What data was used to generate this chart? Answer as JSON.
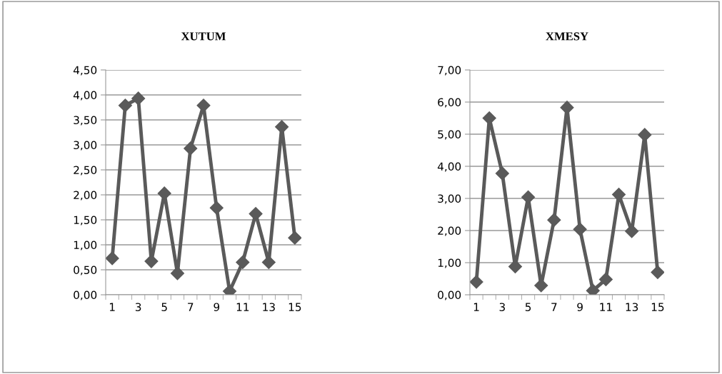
{
  "chart_data": [
    {
      "type": "line",
      "title": "XUTUM",
      "categories": [
        "1",
        null,
        "3",
        null,
        "5",
        null,
        "7",
        null,
        "9",
        null,
        "11",
        null,
        "13",
        null,
        "15"
      ],
      "series": [
        {
          "color": "#5a5a5a",
          "values": [
            0.73,
            3.79,
            3.93,
            0.67,
            2.03,
            0.43,
            2.93,
            3.79,
            1.74,
            0.07,
            0.65,
            1.62,
            0.65,
            3.36,
            1.14
          ]
        }
      ],
      "ylim": [
        0,
        4.5
      ],
      "yticks": [
        {
          "value": 0,
          "label": "0,00"
        },
        {
          "value": 0.5,
          "label": "0,50"
        },
        {
          "value": 1,
          "label": "1,00"
        },
        {
          "value": 1.5,
          "label": "1,50"
        },
        {
          "value": 2,
          "label": "2,00"
        },
        {
          "value": 2.5,
          "label": "2,50"
        },
        {
          "value": 3,
          "label": "3,00"
        },
        {
          "value": 3.5,
          "label": "3,50"
        },
        {
          "value": 4,
          "label": "4,00"
        },
        {
          "value": 4.5,
          "label": "4,50"
        }
      ],
      "grid": "y",
      "marker": "diamond",
      "line_style": "solid",
      "legend": false
    },
    {
      "type": "line",
      "title": "XMESY",
      "categories": [
        "1",
        null,
        "3",
        null,
        "5",
        null,
        "7",
        null,
        "9",
        null,
        "11",
        null,
        "13",
        null,
        "15"
      ],
      "series": [
        {
          "color": "#5a5a5a",
          "values": [
            0.4,
            5.5,
            3.78,
            0.88,
            3.04,
            0.29,
            2.33,
            5.83,
            2.04,
            0.13,
            0.48,
            3.12,
            1.98,
            4.98,
            0.7
          ]
        }
      ],
      "ylim": [
        0,
        7
      ],
      "yticks": [
        {
          "value": 0,
          "label": "0,00"
        },
        {
          "value": 1,
          "label": "1,00"
        },
        {
          "value": 2,
          "label": "2,00"
        },
        {
          "value": 3,
          "label": "3,00"
        },
        {
          "value": 4,
          "label": "4,00"
        },
        {
          "value": 5,
          "label": "5,00"
        },
        {
          "value": 6,
          "label": "6,00"
        },
        {
          "value": 7,
          "label": "7,00"
        }
      ],
      "grid": "y",
      "marker": "diamond",
      "line_style": "solid",
      "legend": false
    }
  ]
}
